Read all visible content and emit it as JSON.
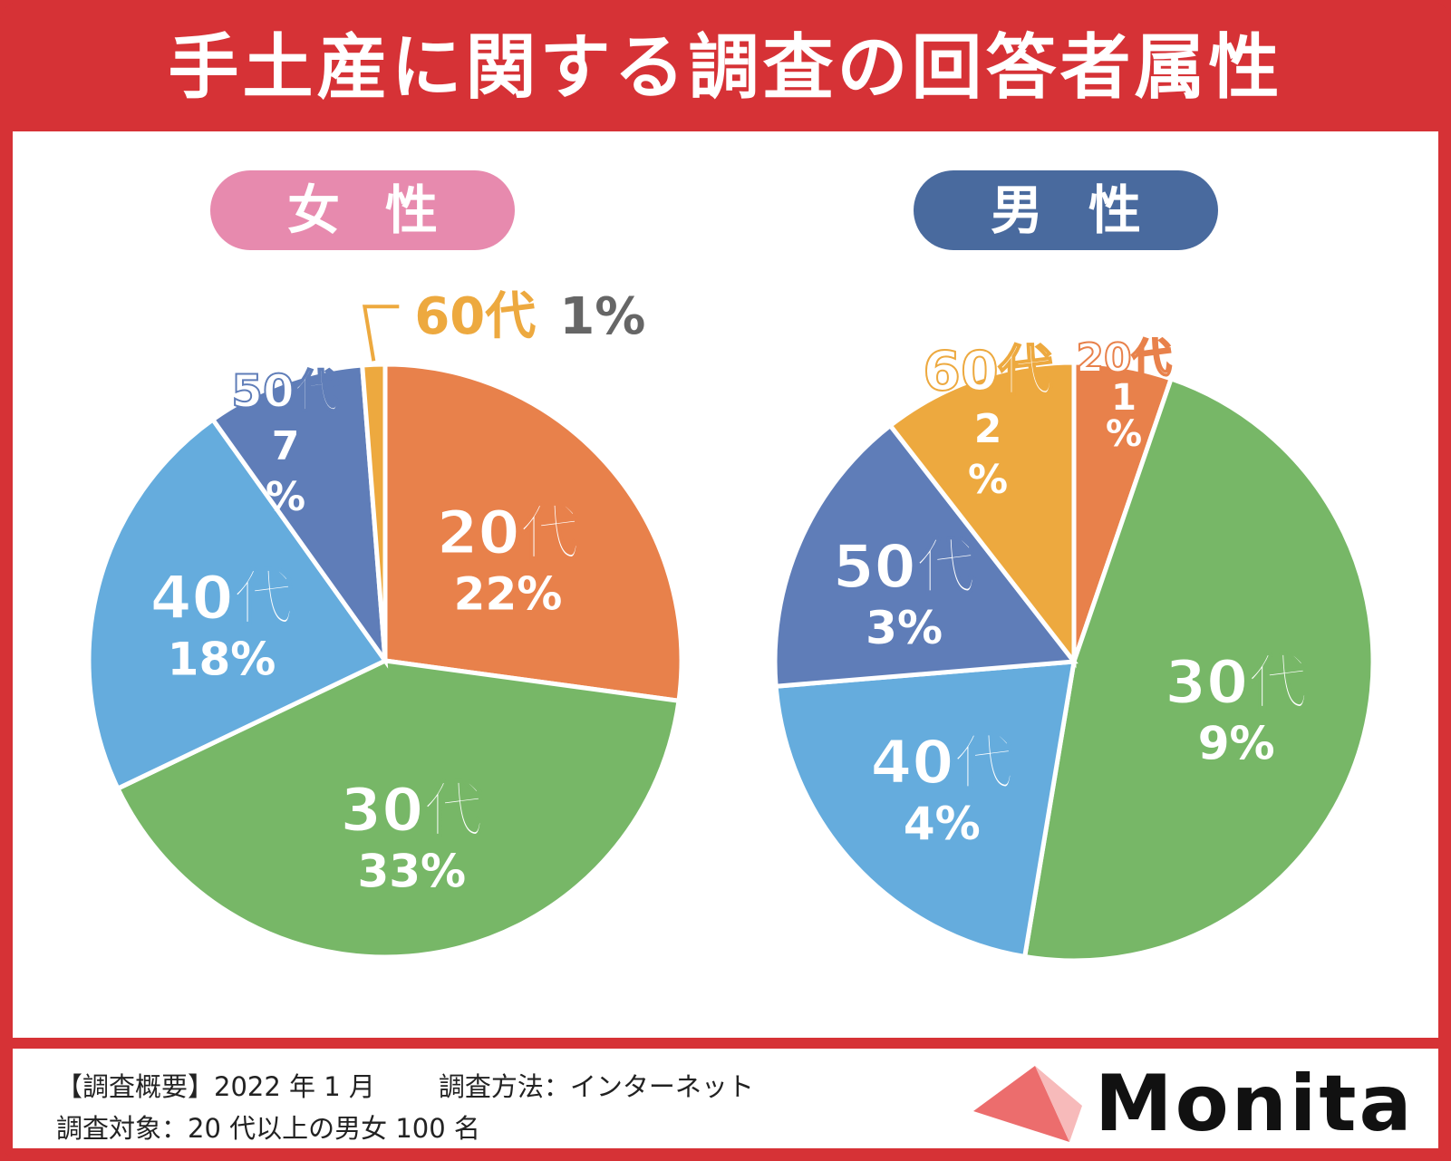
{
  "header": {
    "title": "手土産に関する調査の回答者属性"
  },
  "colors": {
    "frame_red": "#d63236",
    "20s": "#e8814b",
    "30s": "#77b767",
    "40s": "#65acdd",
    "50s": "#5f7db8",
    "60s": "#eda93f",
    "female_pill": "#e78aae",
    "male_pill": "#496a9e"
  },
  "chart_data": [
    {
      "type": "pie",
      "title": "女性",
      "slices": [
        {
          "label": "20代",
          "value": 22,
          "value_text": "22%",
          "color_key": "20s"
        },
        {
          "label": "30代",
          "value": 33,
          "value_text": "33%",
          "color_key": "30s"
        },
        {
          "label": "40代",
          "value": 18,
          "value_text": "18%",
          "color_key": "40s"
        },
        {
          "label": "50代",
          "value": 7,
          "value_text": "7%",
          "color_key": "50s"
        },
        {
          "label": "60代",
          "value": 1,
          "value_text": "1%",
          "color_key": "60s"
        }
      ]
    },
    {
      "type": "pie",
      "title": "男性",
      "slices": [
        {
          "label": "20代",
          "value": 1,
          "value_text": "1%",
          "color_key": "20s"
        },
        {
          "label": "30代",
          "value": 9,
          "value_text": "9%",
          "color_key": "30s"
        },
        {
          "label": "40代",
          "value": 4,
          "value_text": "4%",
          "color_key": "40s"
        },
        {
          "label": "50代",
          "value": 3,
          "value_text": "3%",
          "color_key": "50s"
        },
        {
          "label": "60代",
          "value": 2,
          "value_text": "2%",
          "color_key": "60s"
        }
      ]
    }
  ],
  "footer": {
    "line1_a": "【調査概要】2022 年 1 月",
    "line1_b": "調査方法：インターネット",
    "line2": "調査対象：20 代以上の男女 100 名"
  },
  "logo": {
    "text": "Monita",
    "icon": "triangle-logo-icon"
  }
}
